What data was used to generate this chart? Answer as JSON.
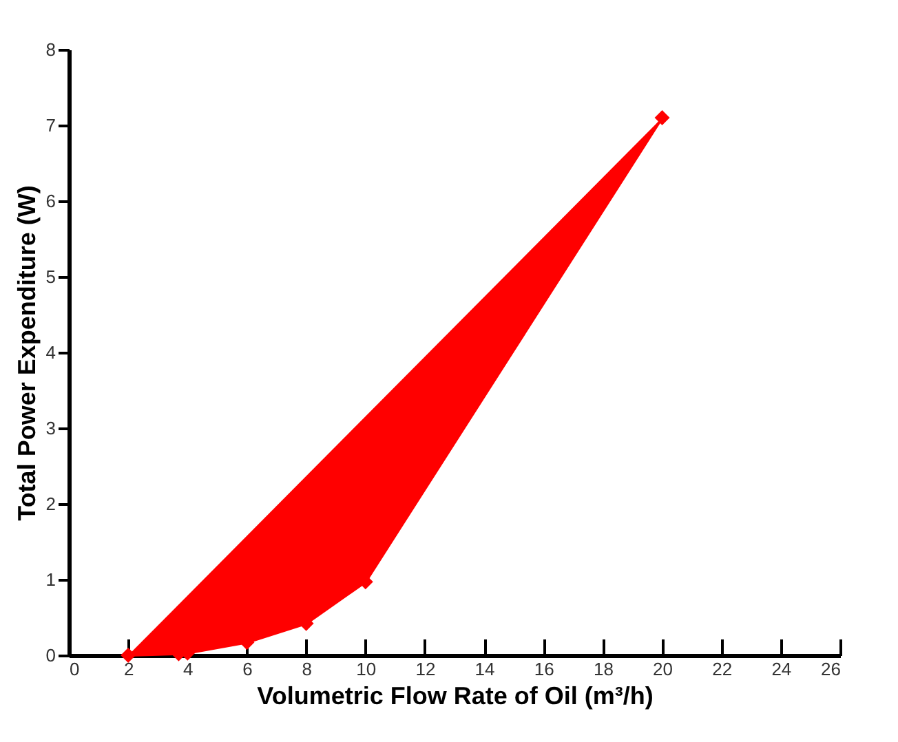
{
  "chart_data": {
    "type": "line",
    "xlabel": "Volumetric Flow Rate of Oil (m³/h)",
    "ylabel": "Total Power Expenditure (W)",
    "x": [
      2,
      3.7,
      4,
      6,
      8,
      10,
      20
    ],
    "series": [
      {
        "color": "#ff0000",
        "values": [
          0,
          0.02,
          0.03,
          0.17,
          0.42,
          0.97,
          7.1
        ]
      }
    ],
    "xlim": [
      0,
      26
    ],
    "xticks": [
      0,
      2,
      4,
      6,
      8,
      10,
      12,
      14,
      16,
      18,
      20,
      22,
      24,
      26
    ],
    "ylim": [
      0,
      8
    ],
    "yticks": [
      0,
      1,
      2,
      3,
      4,
      5,
      6,
      7,
      8
    ],
    "grid": false,
    "marker": "diamond",
    "line_style": "solid"
  }
}
